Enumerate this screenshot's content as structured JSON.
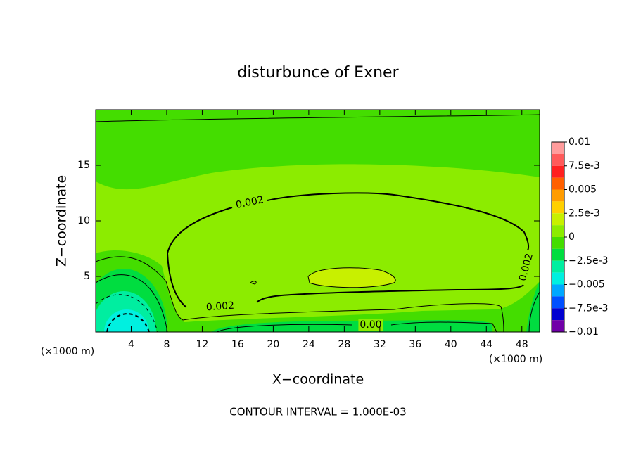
{
  "chart_data": {
    "type": "contour",
    "title": "disturbunce of Exner",
    "x_label": "X−coordinate",
    "y_label": "Z−coordinate",
    "x_unit_label": "(×1000 m)",
    "x_unit_label_right": "(×1000 m)",
    "footnote": "CONTOUR INTERVAL = 1.000E-03",
    "xlim": [
      0,
      50
    ],
    "ylim": [
      0,
      20
    ],
    "xticks": [
      4,
      8,
      12,
      16,
      20,
      24,
      28,
      32,
      36,
      40,
      44,
      48
    ],
    "yticks": [
      5,
      10,
      15
    ],
    "clim": [
      -0.01,
      0.01
    ],
    "cticks": [
      {
        "value": 0.01,
        "label": "0.01"
      },
      {
        "value": 0.0075,
        "label": "7.5e-3"
      },
      {
        "value": 0.005,
        "label": "0.005"
      },
      {
        "value": 0.0025,
        "label": "2.5e-3"
      },
      0,
      {
        "value": -0.0025,
        "label": "−2.5e-3"
      },
      {
        "value": -0.005,
        "label": "−0.005"
      },
      {
        "value": -0.0075,
        "label": "−7.5e-3"
      },
      {
        "value": -0.01,
        "label": "−0.01"
      }
    ],
    "colors": [
      "#ff9c9c",
      "#ff5a5a",
      "#ff2020",
      "#ff6000",
      "#ff9c00",
      "#ffd000",
      "#c8f000",
      "#8cec00",
      "#44dd00",
      "#00dd40",
      "#00eea0",
      "#00f0e0",
      "#00a8ff",
      "#0050ff",
      "#0000d0",
      "#7000a8"
    ],
    "contour_labels": [
      {
        "value": 0.002,
        "label": "0.002"
      },
      {
        "value": 0.002,
        "label": "0.002"
      },
      {
        "value": 0.002,
        "label": "0.002"
      },
      {
        "value": 0,
        "label": "0.00"
      }
    ]
  }
}
